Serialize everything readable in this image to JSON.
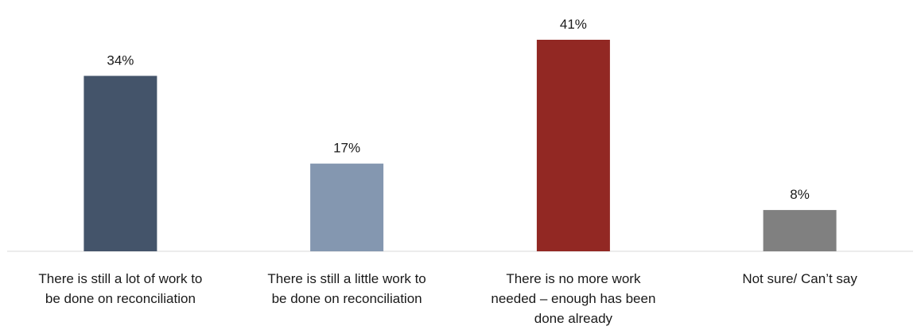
{
  "chart_data": {
    "type": "bar",
    "categories": [
      [
        "There is still a lot of work to",
        "be done on reconciliation"
      ],
      [
        "There is still a little work to",
        "be done on reconciliation"
      ],
      [
        "There is no more work",
        "needed – enough has been",
        "done already"
      ],
      [
        "Not sure/ Can’t say"
      ]
    ],
    "values": [
      34,
      17,
      41,
      8
    ],
    "value_labels": [
      "34%",
      "17%",
      "41%",
      "8%"
    ],
    "colors": [
      "#44546a",
      "#8497b0",
      "#922823",
      "#808080"
    ],
    "title": "",
    "xlabel": "",
    "ylabel": "",
    "ylim": [
      0,
      41
    ],
    "grid": false,
    "legend": "none"
  }
}
